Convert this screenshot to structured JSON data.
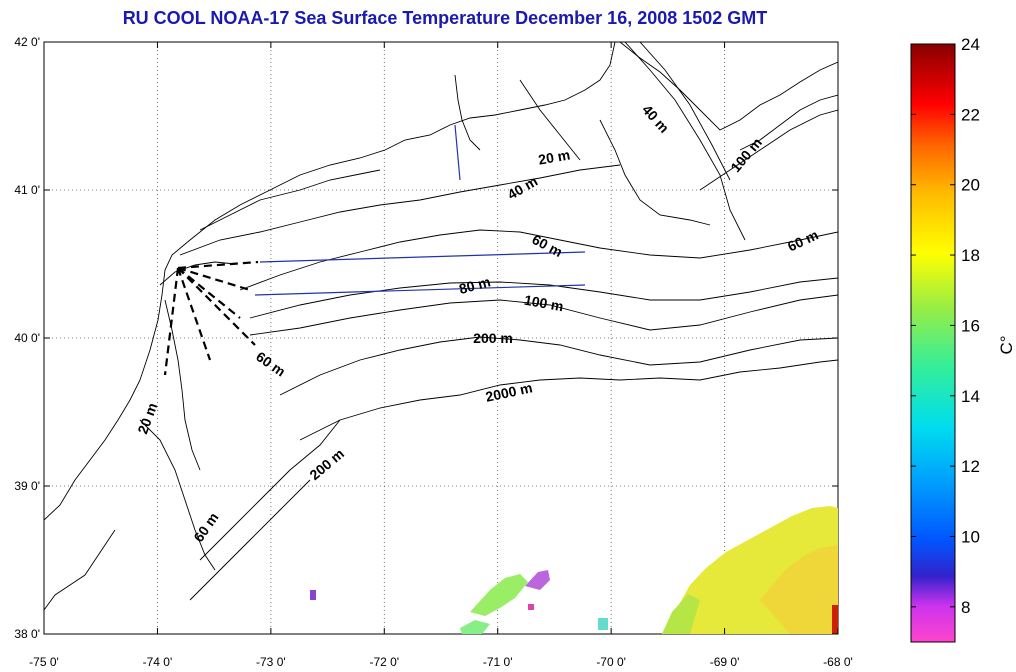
{
  "title": "RU COOL  NOAA-17 Sea Surface Temperature December 16, 2008 1502 GMT",
  "chart_data": {
    "type": "heatmap",
    "title": "RU COOL  NOAA-17 Sea Surface Temperature December 16, 2008 1502 GMT",
    "x_ticks": [
      "-75 0'",
      "-74 0'",
      "-73 0'",
      "-72 0'",
      "-71 0'",
      "-70 0'",
      "-69 0'",
      "-68 0'"
    ],
    "y_ticks": [
      "38 0'",
      "39 0'",
      "40 0'",
      "41 0'",
      "42 0'"
    ],
    "xlim": [
      -75,
      -68
    ],
    "ylim": [
      38,
      42
    ],
    "grid": true,
    "colorbar": {
      "label": "C°",
      "min": 7,
      "max": 24,
      "ticks": [
        "8",
        "10",
        "12",
        "14",
        "16",
        "18",
        "20",
        "22",
        "24"
      ],
      "tick_values": [
        8,
        10,
        12,
        14,
        16,
        18,
        20,
        22,
        24
      ]
    },
    "contour_labels": [
      "20 m",
      "40 m",
      "40 m",
      "100 m",
      "60 m",
      "60 m",
      "80 m",
      "100 m",
      "200 m",
      "2000 m",
      "60 m",
      "200 m",
      "20 m",
      "60 m"
    ],
    "sst_patches_note_values": {
      "southeast_patch_temp_c": 17.5,
      "small_patch_temp_c": 15.5
    }
  },
  "colors": {
    "title": "#1a1ab0",
    "transect": "#2233aa",
    "coast": "#000000"
  }
}
